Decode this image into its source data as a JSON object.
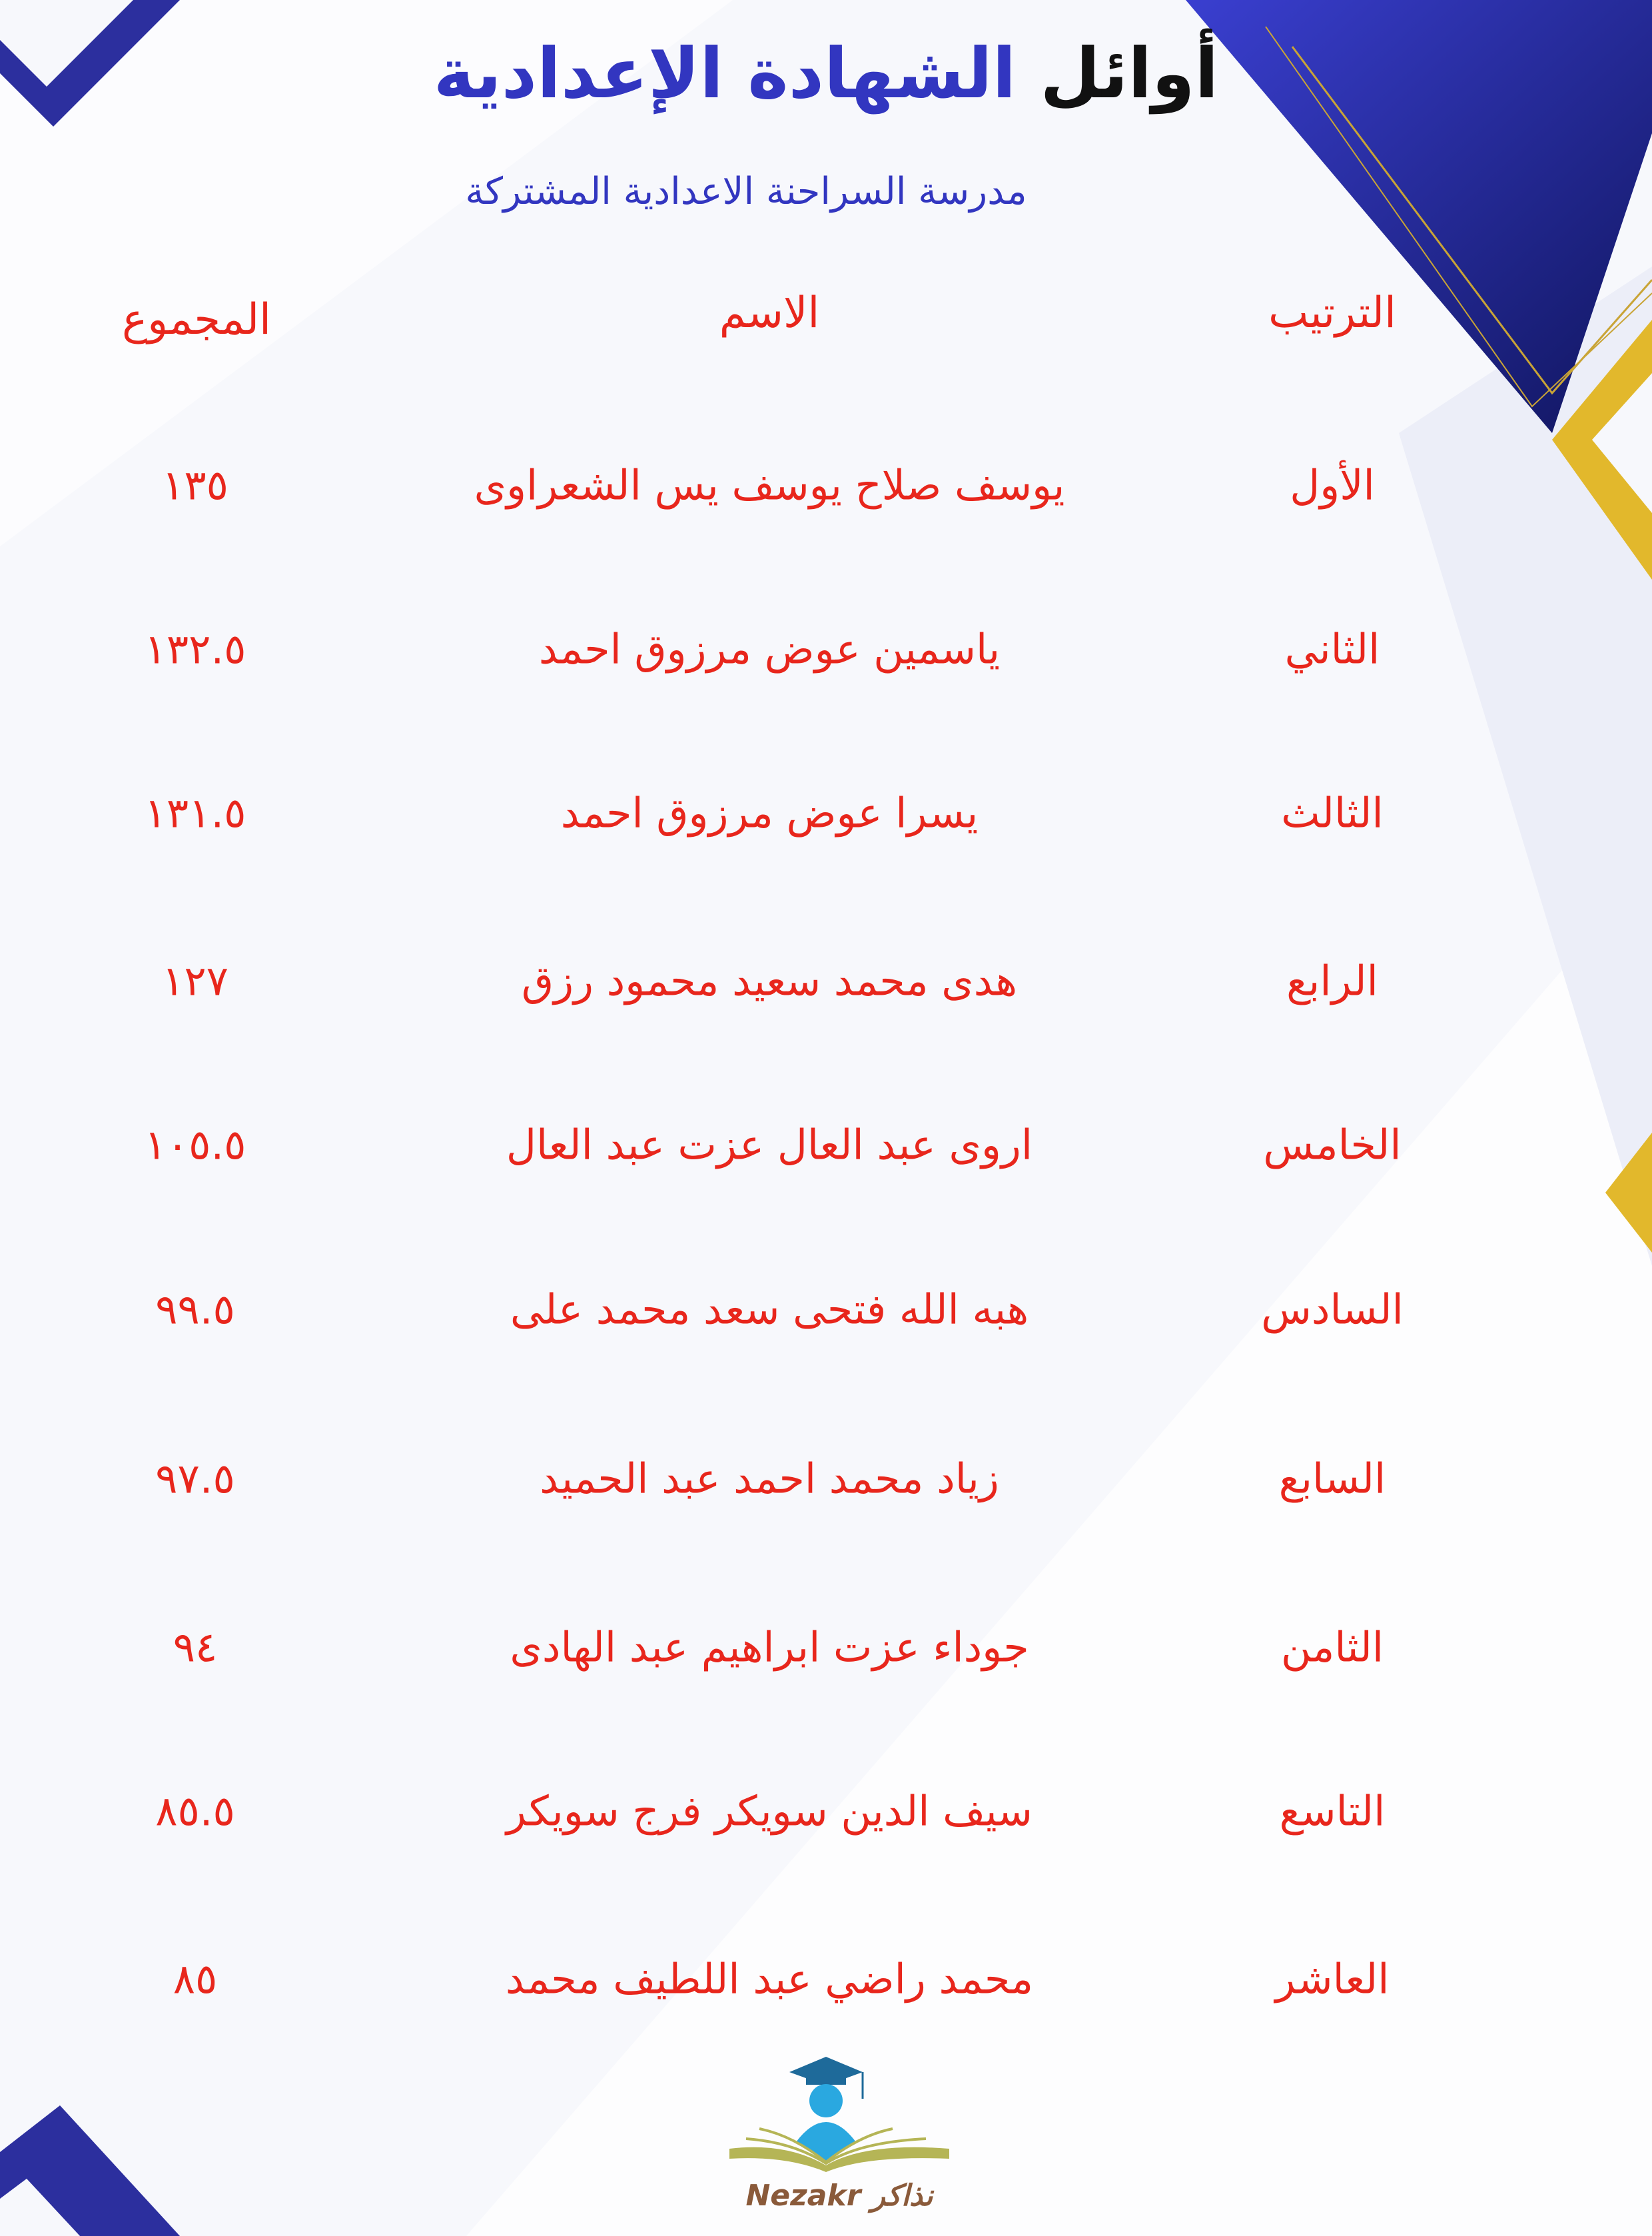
{
  "title": {
    "part1": "أوائل",
    "part2": "الشهادة الإعدادية"
  },
  "subtitle": "مدرسة السراحنة الاعدادية المشتركة",
  "columns": {
    "rank": "الترتيب",
    "name": "الاسم",
    "total": "المجموع"
  },
  "rows": [
    {
      "rank": "الأول",
      "name": "يوسف صلاح يوسف يس الشعراوى",
      "total": "١٣٥"
    },
    {
      "rank": "الثاني",
      "name": "ياسمين عوض مرزوق احمد",
      "total": "١٣٢.٥"
    },
    {
      "rank": "الثالث",
      "name": "يسرا عوض مرزوق احمد",
      "total": "١٣١.٥"
    },
    {
      "rank": "الرابع",
      "name": "هدى محمد سعيد محمود رزق",
      "total": "١٢٧"
    },
    {
      "rank": "الخامس",
      "name": "اروى عبد العال عزت عبد العال",
      "total": "١٠٥.٥"
    },
    {
      "rank": "السادس",
      "name": "هبه الله فتحى سعد محمد على",
      "total": "٩٩.٥"
    },
    {
      "rank": "السابع",
      "name": "زياد محمد احمد عبد الحميد",
      "total": "٩٧.٥"
    },
    {
      "rank": "الثامن",
      "name": "جوداء عزت ابراهيم عبد الهادى",
      "total": "٩٤"
    },
    {
      "rank": "التاسع",
      "name": "سيف الدين سويكر فرج سويكر",
      "total": "٨٥.٥"
    },
    {
      "rank": "العاشر",
      "name": "محمد راضي عبد اللطيف محمد",
      "total": "٨٥"
    }
  ],
  "logo": {
    "text_en": "Nezakr",
    "text_ar": "نذاكر"
  },
  "colors": {
    "accent_blue": "#3236c0",
    "text_red": "#e8261c",
    "gold": "#e2b82c",
    "logo_brown": "#8a5a3a"
  }
}
